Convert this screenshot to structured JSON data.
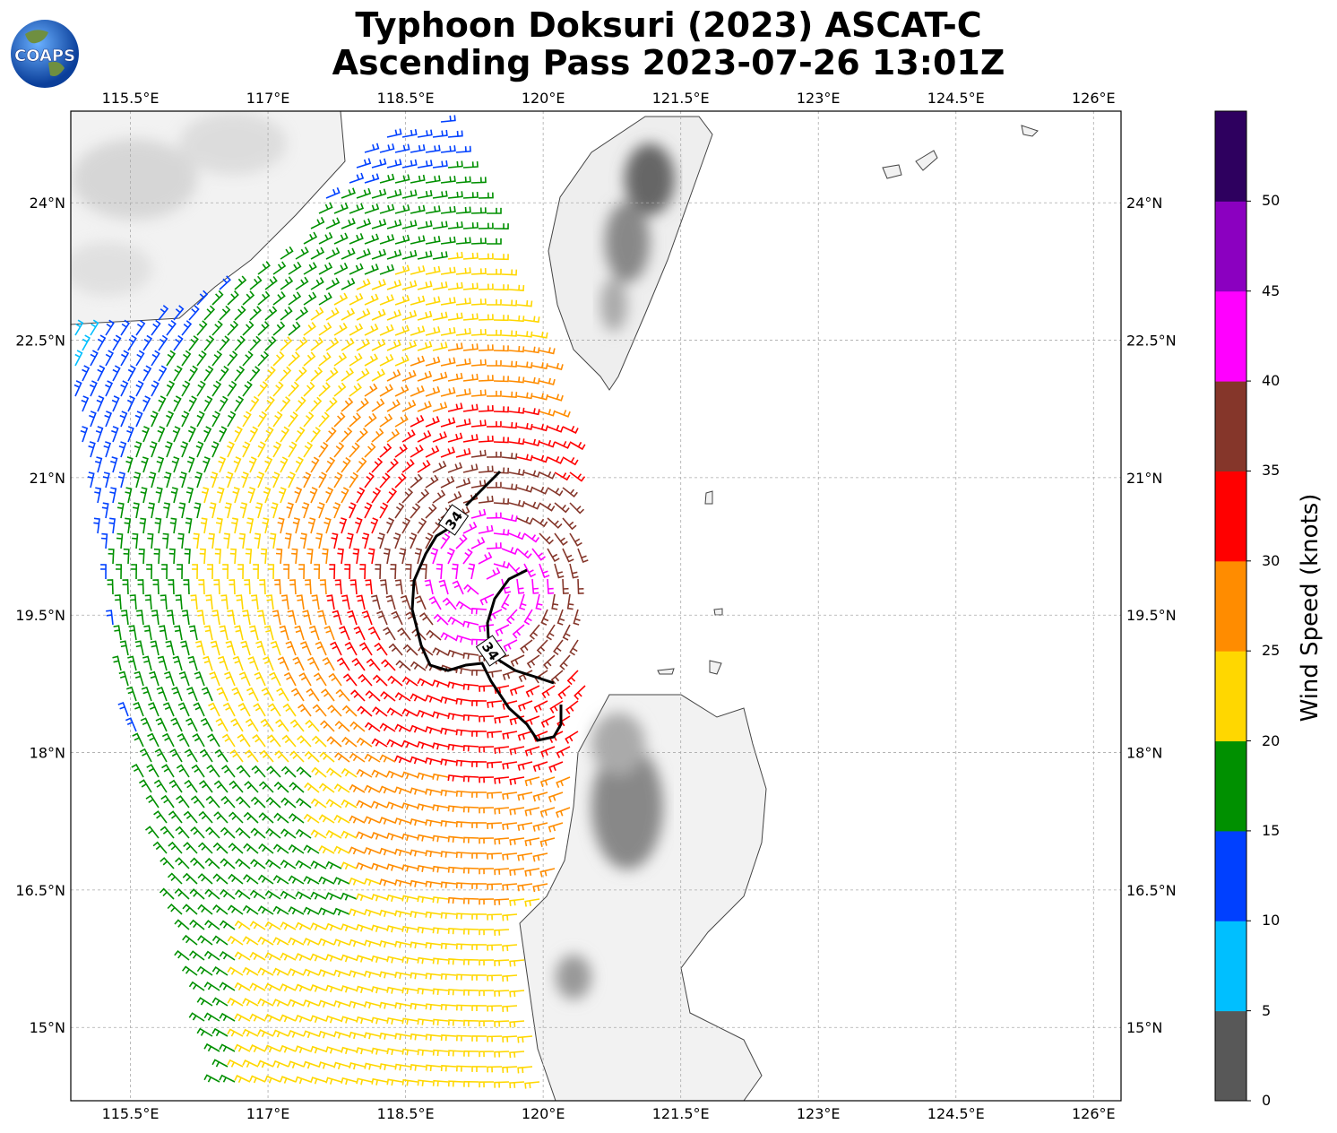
{
  "title_line1": "Typhoon Doksuri (2023) ASCAT-C",
  "title_line2": "Ascending Pass 2023-07-26 13:01Z",
  "logo_text": "COAPS",
  "lon_ticks": [
    "115.5°E",
    "117°E",
    "118.5°E",
    "120°E",
    "121.5°E",
    "123°E",
    "124.5°E",
    "126°E"
  ],
  "lat_ticks": [
    "24°N",
    "22.5°N",
    "21°N",
    "19.5°N",
    "18°N",
    "16.5°N",
    "15°N"
  ],
  "map_extent": {
    "lon": [
      114.85,
      126.3
    ],
    "lat": [
      14.2,
      25.0
    ]
  },
  "contour_label": "34",
  "colorbar": {
    "title": "Wind Speed (knots)",
    "ticks": [
      "0",
      "5",
      "10",
      "15",
      "20",
      "25",
      "30",
      "35",
      "40",
      "45",
      "50"
    ],
    "colors": [
      "#585858",
      "#00bfff",
      "#0040ff",
      "#009000",
      "#ffd700",
      "#ff8c00",
      "#ff0000",
      "#85362a",
      "#ff00ff",
      "#8b00c0",
      "#2e005f"
    ]
  }
}
